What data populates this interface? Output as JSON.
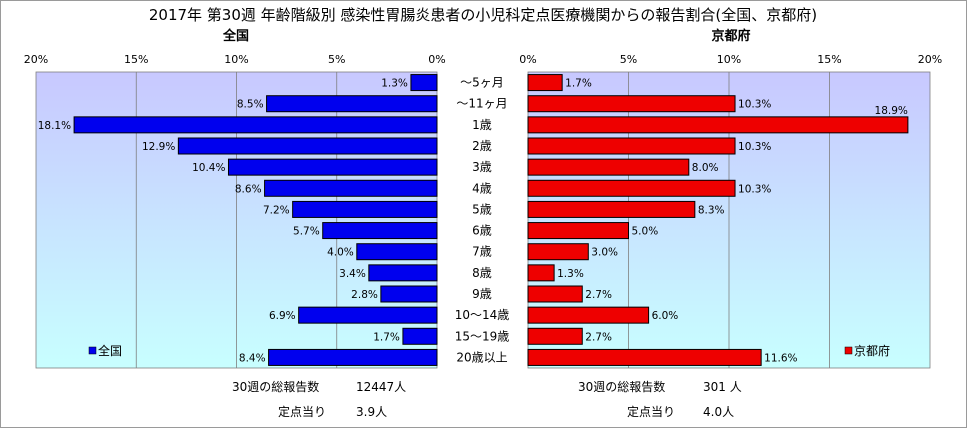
{
  "chart_data": {
    "type": "bar",
    "title": "2017年 第30週 年齢階級別 感染性胃腸炎患者の小児科定点医療機関からの報告割合(全国、京都府)",
    "categories": [
      "～5ヶ月",
      "～11ヶ月",
      "1歳",
      "2歳",
      "3歳",
      "4歳",
      "5歳",
      "6歳",
      "7歳",
      "8歳",
      "9歳",
      "10～14歳",
      "15～19歳",
      "20歳以上"
    ],
    "xlim": [
      0,
      20
    ],
    "tick_labels": [
      "0%",
      "5%",
      "10%",
      "15%",
      "20%"
    ],
    "grid": true,
    "series": [
      {
        "name": "全国",
        "subtitle": "全国",
        "legend": "全国",
        "color": "#0000ee",
        "values": [
          1.3,
          8.5,
          18.1,
          12.9,
          10.4,
          8.6,
          7.2,
          5.7,
          4.0,
          3.4,
          2.8,
          6.9,
          1.7,
          8.4
        ],
        "value_labels": [
          "1.3%",
          "8.5%",
          "18.1%",
          "12.9%",
          "10.4%",
          "8.6%",
          "7.2%",
          "5.7%",
          "4.0%",
          "3.4%",
          "2.8%",
          "6.9%",
          "1.7%",
          "8.4%"
        ],
        "legend_placement": "bottom-left"
      },
      {
        "name": "京都府",
        "subtitle": "京都府",
        "legend": "京都府",
        "color": "#ee0000",
        "values": [
          1.7,
          10.3,
          18.9,
          10.3,
          8.0,
          10.3,
          8.3,
          5.0,
          3.0,
          1.3,
          2.7,
          6.0,
          2.7,
          11.6
        ],
        "value_labels": [
          "1.7%",
          "10.3%",
          "18.9%",
          "10.3%",
          "8.0%",
          "10.3%",
          "8.3%",
          "5.0%",
          "3.0%",
          "1.3%",
          "2.7%",
          "6.0%",
          "2.7%",
          "11.6%"
        ],
        "legend_placement": "bottom-right"
      }
    ]
  },
  "footer": {
    "left": {
      "total_label": "30週の総報告数",
      "total_value": "12447人",
      "per_label": "定点当り",
      "per_value": "3.9人"
    },
    "right": {
      "total_label": "30週の総報告数",
      "total_value": "301 人",
      "per_label": "定点当り",
      "per_value": "4.0人"
    }
  },
  "colors": {
    "plot_top": "#c8c8ff",
    "plot_bottom": "#c8ffff",
    "grid": "#7f7f7f"
  }
}
